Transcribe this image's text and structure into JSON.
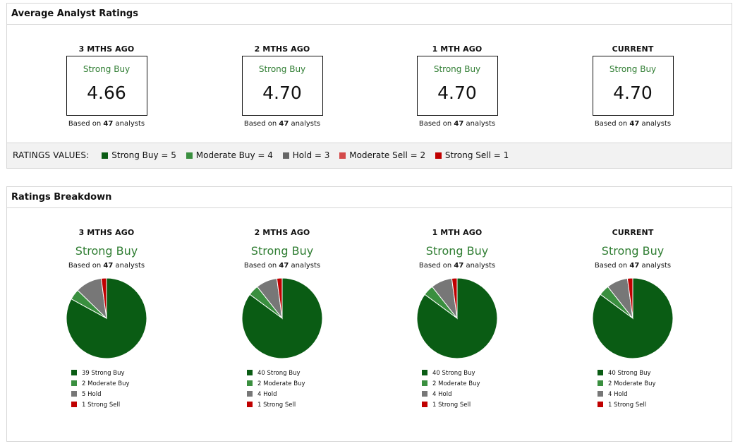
{
  "summary": {
    "title": "Average Analyst Ratings",
    "periods": [
      {
        "label": "3 MTHS AGO",
        "rating": "Strong Buy",
        "value": "4.66",
        "based_prefix": "Based on",
        "count": "47",
        "based_suffix": "analysts"
      },
      {
        "label": "2 MTHS AGO",
        "rating": "Strong Buy",
        "value": "4.70",
        "based_prefix": "Based on",
        "count": "47",
        "based_suffix": "analysts"
      },
      {
        "label": "1 MTH AGO",
        "rating": "Strong Buy",
        "value": "4.70",
        "based_prefix": "Based on",
        "count": "47",
        "based_suffix": "analysts"
      },
      {
        "label": "CURRENT",
        "rating": "Strong Buy",
        "value": "4.70",
        "based_prefix": "Based on",
        "count": "47",
        "based_suffix": "analysts"
      }
    ],
    "ratings_values": {
      "label": "RATINGS VALUES:",
      "items": [
        {
          "text": "Strong Buy = 5",
          "color": "#0a5c14"
        },
        {
          "text": "Moderate Buy = 4",
          "color": "#3a8f3f"
        },
        {
          "text": "Hold = 3",
          "color": "#666666"
        },
        {
          "text": "Moderate Sell = 2",
          "color": "#d44a4a"
        },
        {
          "text": "Strong Sell = 1",
          "color": "#c00000"
        }
      ]
    }
  },
  "breakdown": {
    "title": "Ratings Breakdown",
    "periods": [
      {
        "label": "3 MTHS AGO",
        "rating": "Strong Buy",
        "based_prefix": "Based on",
        "count": "47",
        "based_suffix": "analysts",
        "legend": [
          "39 Strong Buy",
          "2 Moderate Buy",
          "5 Hold",
          "1 Strong Sell"
        ]
      },
      {
        "label": "2 MTHS AGO",
        "rating": "Strong Buy",
        "based_prefix": "Based on",
        "count": "47",
        "based_suffix": "analysts",
        "legend": [
          "40 Strong Buy",
          "2 Moderate Buy",
          "4 Hold",
          "1 Strong Sell"
        ]
      },
      {
        "label": "1 MTH AGO",
        "rating": "Strong Buy",
        "based_prefix": "Based on",
        "count": "47",
        "based_suffix": "analysts",
        "legend": [
          "40 Strong Buy",
          "2 Moderate Buy",
          "4 Hold",
          "1 Strong Sell"
        ]
      },
      {
        "label": "CURRENT",
        "rating": "Strong Buy",
        "based_prefix": "Based on",
        "count": "47",
        "based_suffix": "analysts",
        "legend": [
          "40 Strong Buy",
          "2 Moderate Buy",
          "4 Hold",
          "1 Strong Sell"
        ]
      }
    ]
  },
  "chart_data": [
    {
      "type": "pie",
      "categories": [
        "Strong Buy",
        "Moderate Buy",
        "Hold",
        "Strong Sell"
      ],
      "values": [
        39,
        2,
        5,
        1
      ],
      "colors": [
        "#0a5c14",
        "#3a8f3f",
        "#777777",
        "#c00000"
      ]
    },
    {
      "type": "pie",
      "categories": [
        "Strong Buy",
        "Moderate Buy",
        "Hold",
        "Strong Sell"
      ],
      "values": [
        40,
        2,
        4,
        1
      ],
      "colors": [
        "#0a5c14",
        "#3a8f3f",
        "#777777",
        "#c00000"
      ]
    },
    {
      "type": "pie",
      "categories": [
        "Strong Buy",
        "Moderate Buy",
        "Hold",
        "Strong Sell"
      ],
      "values": [
        40,
        2,
        4,
        1
      ],
      "colors": [
        "#0a5c14",
        "#3a8f3f",
        "#777777",
        "#c00000"
      ]
    },
    {
      "type": "pie",
      "categories": [
        "Strong Buy",
        "Moderate Buy",
        "Hold",
        "Strong Sell"
      ],
      "values": [
        40,
        2,
        4,
        1
      ],
      "colors": [
        "#0a5c14",
        "#3a8f3f",
        "#777777",
        "#c00000"
      ]
    }
  ]
}
